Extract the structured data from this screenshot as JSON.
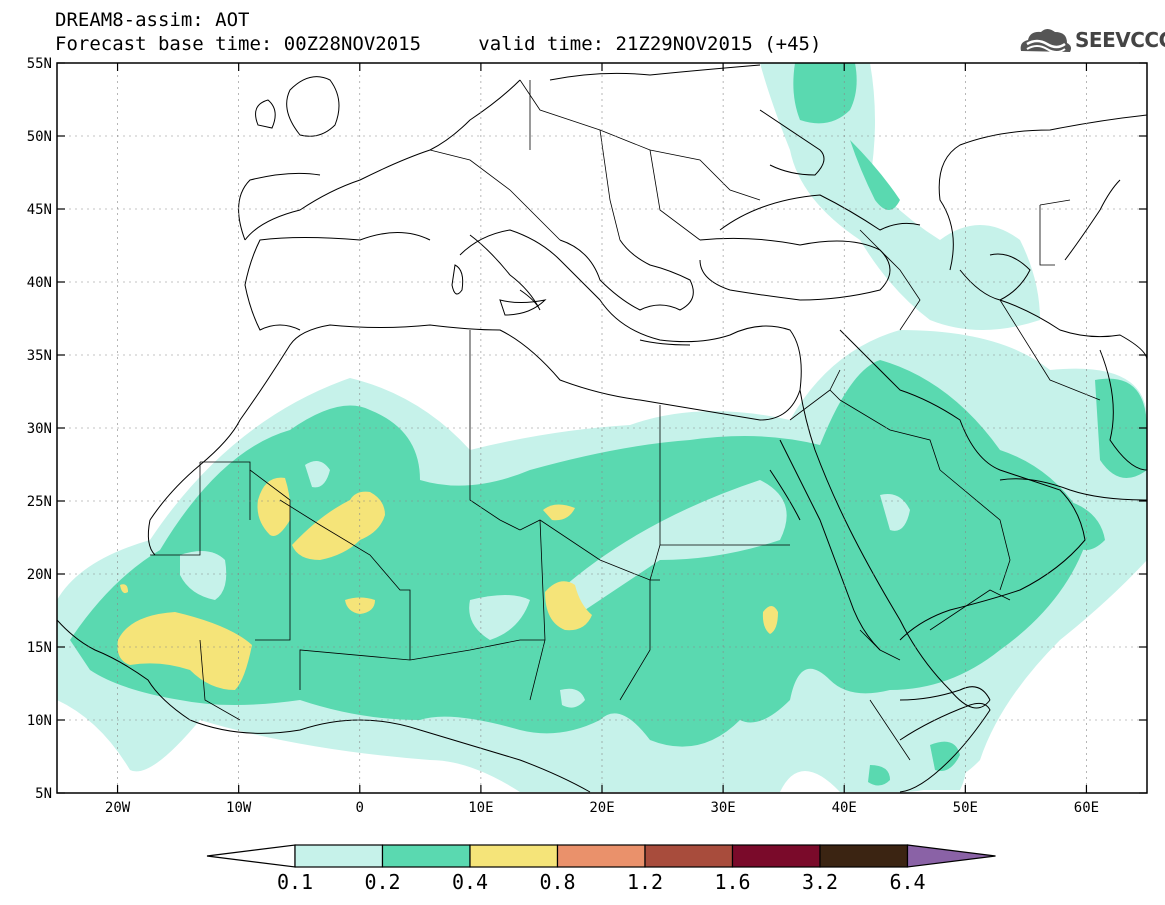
{
  "header": {
    "title": "DREAM8-assim: AOT",
    "base_time": "Forecast base time: 00Z28NOV2015",
    "valid_time": "valid time: 21Z29NOV2015 (+45)"
  },
  "logo": {
    "text": "SEEVCCC",
    "icon": "cloud-logo-icon"
  },
  "map": {
    "projection": "lat-lon",
    "lon_range": [
      -25,
      65
    ],
    "lat_range": [
      5,
      55
    ],
    "lat_ticks": [
      {
        "value": 55,
        "label": "55N"
      },
      {
        "value": 50,
        "label": "50N"
      },
      {
        "value": 45,
        "label": "45N"
      },
      {
        "value": 40,
        "label": "40N"
      },
      {
        "value": 35,
        "label": "35N"
      },
      {
        "value": 30,
        "label": "30N"
      },
      {
        "value": 25,
        "label": "25N"
      },
      {
        "value": 20,
        "label": "20N"
      },
      {
        "value": 15,
        "label": "15N"
      },
      {
        "value": 10,
        "label": "10N"
      },
      {
        "value": 5,
        "label": "5N"
      }
    ],
    "lon_ticks": [
      {
        "value": -20,
        "label": "20W"
      },
      {
        "value": -10,
        "label": "10W"
      },
      {
        "value": 0,
        "label": "0"
      },
      {
        "value": 10,
        "label": "10E"
      },
      {
        "value": 20,
        "label": "20E"
      },
      {
        "value": 30,
        "label": "30E"
      },
      {
        "value": 40,
        "label": "40E"
      },
      {
        "value": 50,
        "label": "50E"
      },
      {
        "value": 60,
        "label": "60E"
      }
    ],
    "grid": true
  },
  "colorbar": {
    "labels": [
      "0.1",
      "0.2",
      "0.4",
      "0.8",
      "1.2",
      "1.6",
      "3.2",
      "6.4"
    ],
    "colors": [
      "#ffffff",
      "#c6f2ea",
      "#5ad9b0",
      "#f5e479",
      "#ea916b",
      "#a84c3c",
      "#7a0a2a",
      "#3b2412",
      "#8a62a6"
    ]
  }
}
